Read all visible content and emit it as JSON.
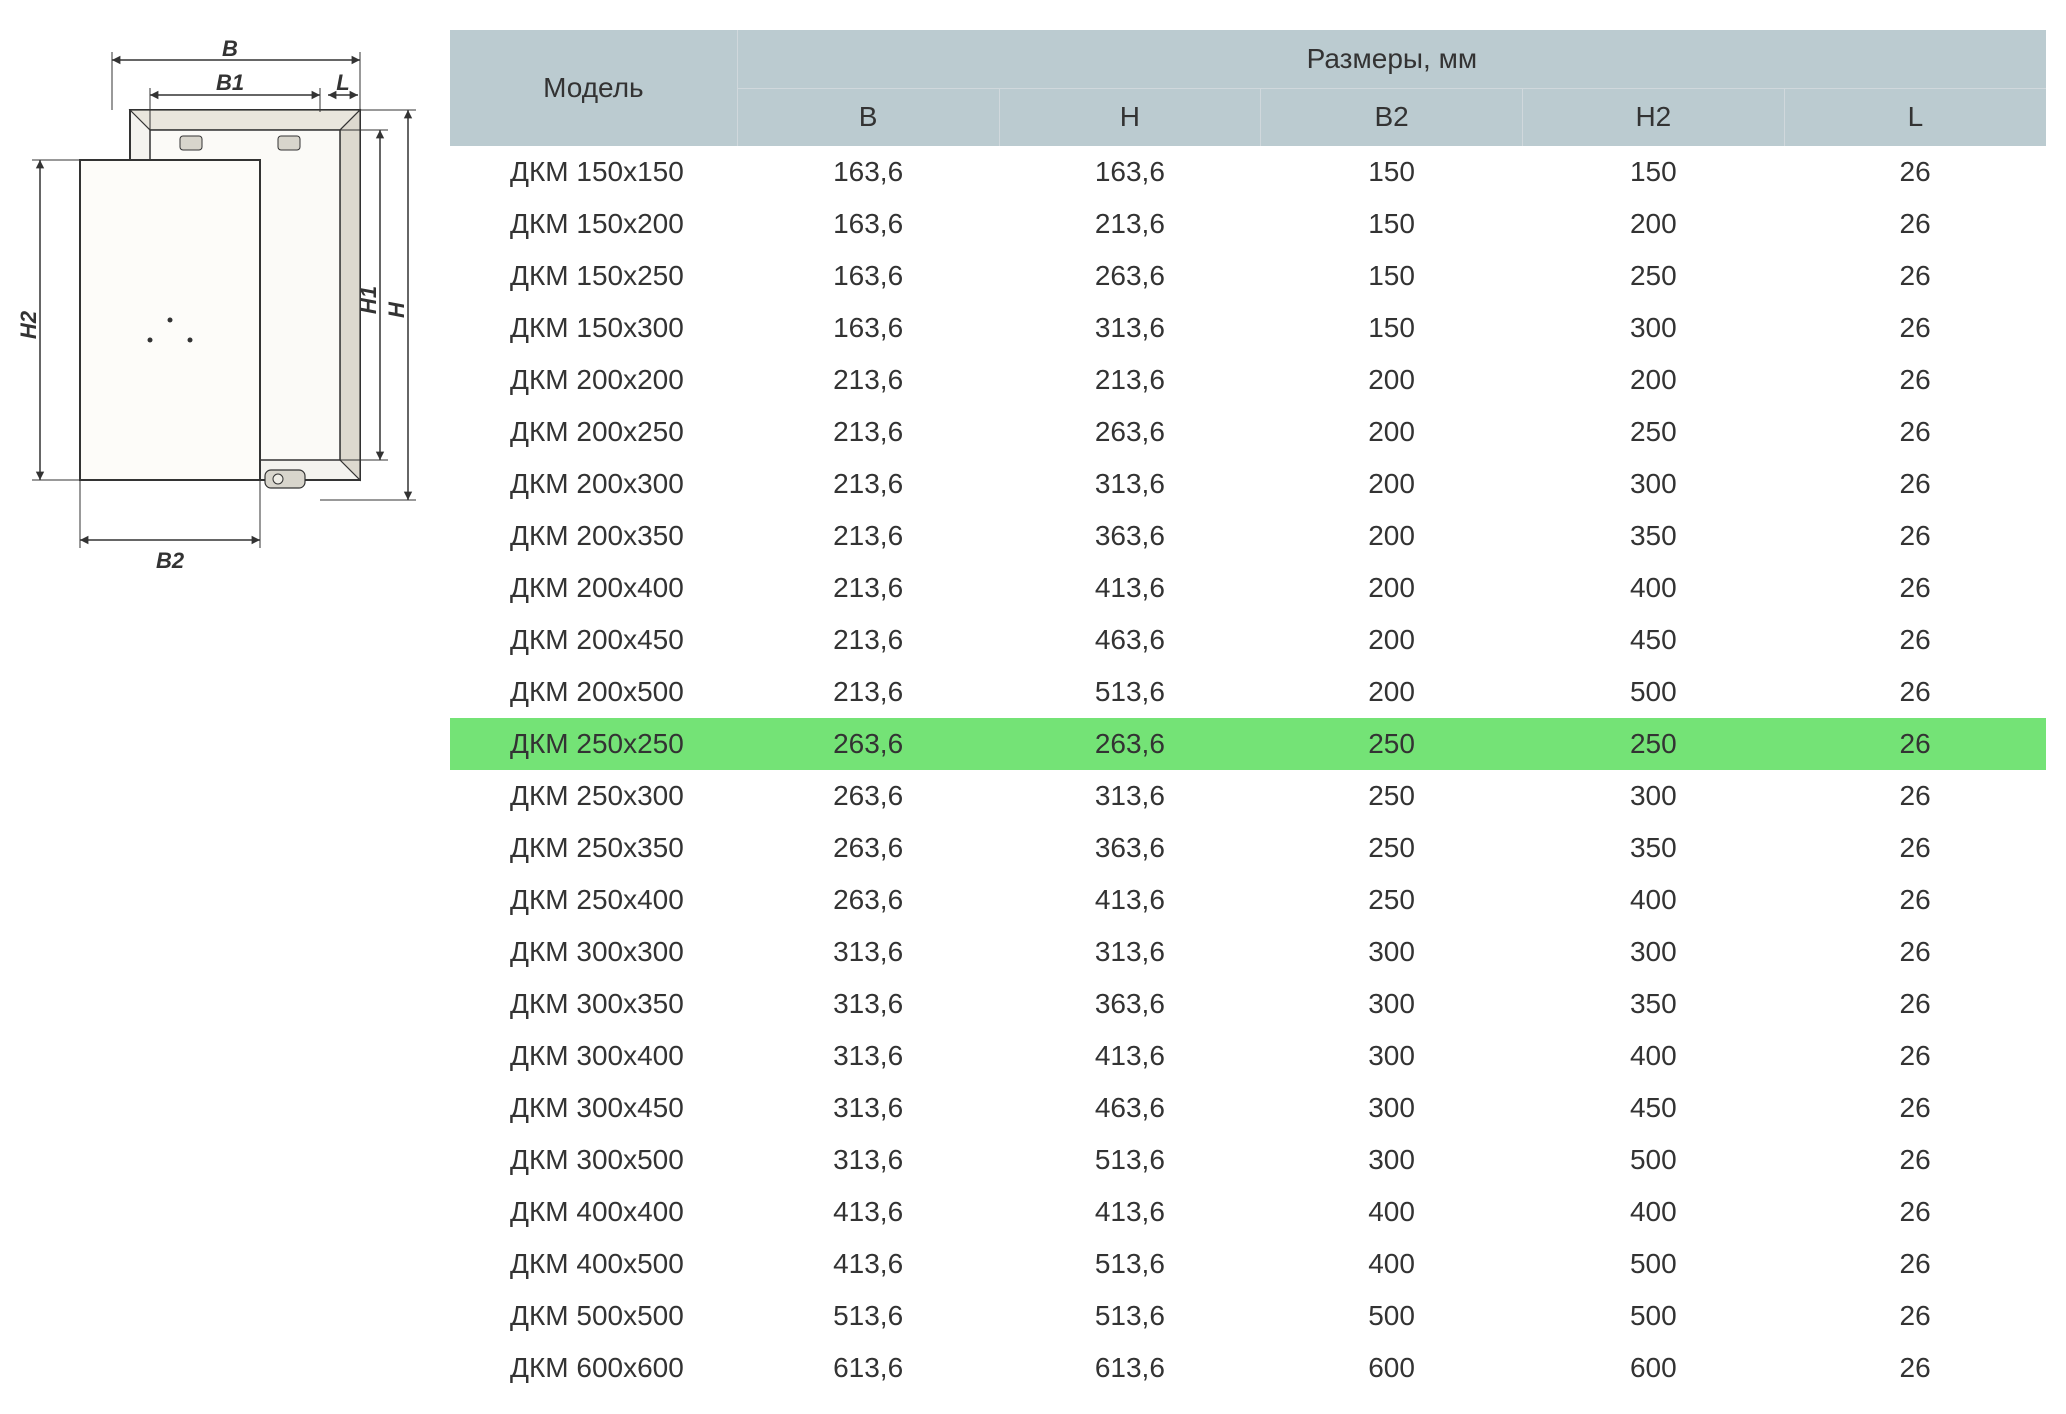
{
  "diagram": {
    "labels": {
      "B": "B",
      "B1": "B1",
      "L": "L",
      "B2": "B2",
      "H": "H",
      "H1": "H1",
      "H2": "H2"
    },
    "colors": {
      "stroke": "#333333",
      "light_fill": "#f4f3ef",
      "shade": "#d8d5cc",
      "thin": "#888888"
    }
  },
  "table": {
    "header": {
      "model_label": "Модель",
      "dims_group_label": "Размеры, мм",
      "sub_columns": [
        "B",
        "H",
        "B2",
        "H2",
        "L"
      ]
    },
    "header_bg": "#bbcbd0",
    "header_border": "#d0d8dc",
    "highlight_bg": "#74e376",
    "highlight_index": 11,
    "col_widths_pct": [
      18,
      16.4,
      16.4,
      16.4,
      16.4,
      16.4
    ],
    "rows": [
      {
        "model": "ДКМ 150х150",
        "B": "163,6",
        "H": "163,6",
        "B2": "150",
        "H2": "150",
        "L": "26"
      },
      {
        "model": "ДКМ 150х200",
        "B": "163,6",
        "H": "213,6",
        "B2": "150",
        "H2": "200",
        "L": "26"
      },
      {
        "model": "ДКМ 150х250",
        "B": "163,6",
        "H": "263,6",
        "B2": "150",
        "H2": "250",
        "L": "26"
      },
      {
        "model": "ДКМ 150х300",
        "B": "163,6",
        "H": "313,6",
        "B2": "150",
        "H2": "300",
        "L": "26"
      },
      {
        "model": "ДКМ 200х200",
        "B": "213,6",
        "H": "213,6",
        "B2": "200",
        "H2": "200",
        "L": "26"
      },
      {
        "model": "ДКМ 200х250",
        "B": "213,6",
        "H": "263,6",
        "B2": "200",
        "H2": "250",
        "L": "26"
      },
      {
        "model": "ДКМ 200х300",
        "B": "213,6",
        "H": "313,6",
        "B2": "200",
        "H2": "300",
        "L": "26"
      },
      {
        "model": "ДКМ 200х350",
        "B": "213,6",
        "H": "363,6",
        "B2": "200",
        "H2": "350",
        "L": "26"
      },
      {
        "model": "ДКМ 200х400",
        "B": "213,6",
        "H": "413,6",
        "B2": "200",
        "H2": "400",
        "L": "26"
      },
      {
        "model": "ДКМ 200х450",
        "B": "213,6",
        "H": "463,6",
        "B2": "200",
        "H2": "450",
        "L": "26"
      },
      {
        "model": "ДКМ 200х500",
        "B": "213,6",
        "H": "513,6",
        "B2": "200",
        "H2": "500",
        "L": "26"
      },
      {
        "model": "ДКМ 250х250",
        "B": "263,6",
        "H": "263,6",
        "B2": "250",
        "H2": "250",
        "L": "26"
      },
      {
        "model": "ДКМ 250х300",
        "B": "263,6",
        "H": "313,6",
        "B2": "250",
        "H2": "300",
        "L": "26"
      },
      {
        "model": "ДКМ 250х350",
        "B": "263,6",
        "H": "363,6",
        "B2": "250",
        "H2": "350",
        "L": "26"
      },
      {
        "model": "ДКМ 250х400",
        "B": "263,6",
        "H": "413,6",
        "B2": "250",
        "H2": "400",
        "L": "26"
      },
      {
        "model": "ДКМ 300х300",
        "B": "313,6",
        "H": "313,6",
        "B2": "300",
        "H2": "300",
        "L": "26"
      },
      {
        "model": "ДКМ 300х350",
        "B": "313,6",
        "H": "363,6",
        "B2": "300",
        "H2": "350",
        "L": "26"
      },
      {
        "model": "ДКМ 300х400",
        "B": "313,6",
        "H": "413,6",
        "B2": "300",
        "H2": "400",
        "L": "26"
      },
      {
        "model": "ДКМ 300х450",
        "B": "313,6",
        "H": "463,6",
        "B2": "300",
        "H2": "450",
        "L": "26"
      },
      {
        "model": "ДКМ 300х500",
        "B": "313,6",
        "H": "513,6",
        "B2": "300",
        "H2": "500",
        "L": "26"
      },
      {
        "model": "ДКМ 400х400",
        "B": "413,6",
        "H": "413,6",
        "B2": "400",
        "H2": "400",
        "L": "26"
      },
      {
        "model": "ДКМ 400х500",
        "B": "413,6",
        "H": "513,6",
        "B2": "400",
        "H2": "500",
        "L": "26"
      },
      {
        "model": "ДКМ 500х500",
        "B": "513,6",
        "H": "513,6",
        "B2": "500",
        "H2": "500",
        "L": "26"
      },
      {
        "model": "ДКМ 600х600",
        "B": "613,6",
        "H": "613,6",
        "B2": "600",
        "H2": "600",
        "L": "26"
      }
    ]
  }
}
